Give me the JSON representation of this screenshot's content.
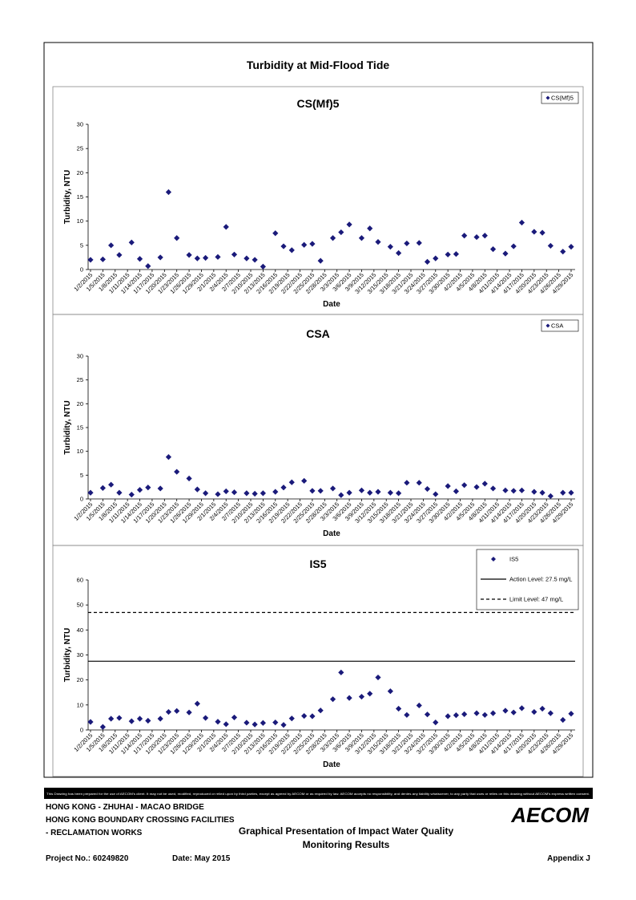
{
  "title": "Turbidity at Mid-Flood Tide",
  "chart_data": [
    {
      "type": "scatter",
      "title": "CS(Mf)5",
      "x_label": "Date",
      "y_label": "Turbidity, NTU",
      "legend": "upper right",
      "marker": "diamond",
      "x": [
        "1/2/2015",
        "1/5/2015",
        "1/7/2015",
        "1/9/2015",
        "1/12/2015",
        "1/14/2015",
        "1/16/2015",
        "1/19/2015",
        "1/21/2015",
        "1/23/2015",
        "1/26/2015",
        "1/28/2015",
        "1/30/2015",
        "2/2/2015",
        "2/4/2015",
        "2/6/2015",
        "2/9/2015",
        "2/11/2015",
        "2/13/2015",
        "2/16/2015",
        "2/18/2015",
        "2/20/2015",
        "2/23/2015",
        "2/25/2015",
        "2/27/2015",
        "3/2/2015",
        "3/4/2015",
        "3/6/2015",
        "3/9/2015",
        "3/11/2015",
        "3/13/2015",
        "3/16/2015",
        "3/18/2015",
        "3/20/2015",
        "3/23/2015",
        "3/25/2015",
        "3/27/2015",
        "3/30/2015",
        "4/1/2015",
        "4/3/2015",
        "4/6/2015",
        "4/8/2015",
        "4/10/2015",
        "4/13/2015",
        "4/15/2015",
        "4/17/2015",
        "4/20/2015",
        "4/22/2015",
        "4/24/2015",
        "4/27/2015",
        "4/29/2015"
      ],
      "series": [
        {
          "name": "CS(Mf)5",
          "color": "#1a1a7a",
          "values": [
            2.0,
            2.1,
            5.0,
            3.0,
            5.6,
            2.2,
            0.7,
            2.5,
            16,
            6.5,
            3.0,
            2.3,
            2.4,
            2.6,
            8.8,
            3.1,
            2.3,
            2.0,
            0.6,
            7.5,
            4.8,
            4.0,
            5.1,
            5.3,
            1.8,
            6.5,
            7.7,
            9.3,
            6.5,
            8.5,
            5.7,
            4.7,
            3.4,
            5.4,
            5.5,
            1.6,
            2.3,
            3.1,
            3.2,
            7.0,
            6.7,
            7.0,
            4.2,
            3.3,
            4.8,
            9.7,
            7.8,
            7.6,
            4.9,
            3.7,
            4.7
          ]
        }
      ],
      "xlim": [
        "1/2/2015",
        "4/29/2015"
      ],
      "ylim": [
        0,
        30
      ],
      "yticks": [
        0,
        5,
        10,
        15,
        20,
        25,
        30
      ],
      "xticks": [
        "1/2/2015",
        "1/5/2015",
        "1/8/2015",
        "1/11/2015",
        "1/14/2015",
        "1/17/2015",
        "1/20/2015",
        "1/23/2015",
        "1/26/2015",
        "1/29/2015",
        "2/1/2015",
        "2/4/2015",
        "2/7/2015",
        "2/10/2015",
        "2/13/2015",
        "2/16/2015",
        "2/19/2015",
        "2/22/2015",
        "2/25/2015",
        "2/28/2015",
        "3/3/2015",
        "3/6/2015",
        "3/9/2015",
        "3/12/2015",
        "3/15/2015",
        "3/18/2015",
        "3/21/2015",
        "3/24/2015",
        "3/27/2015",
        "3/30/2015",
        "4/2/2015",
        "4/5/2015",
        "4/8/2015",
        "4/11/2015",
        "4/14/2015",
        "4/17/2015",
        "4/20/2015",
        "4/23/2015",
        "4/26/2015",
        "4/29/2015"
      ]
    },
    {
      "type": "scatter",
      "title": "CSA",
      "x_label": "Date",
      "y_label": "Turbidity, NTU",
      "legend": "upper right",
      "marker": "diamond",
      "x": [
        "1/2/2015",
        "1/5/2015",
        "1/7/2015",
        "1/9/2015",
        "1/12/2015",
        "1/14/2015",
        "1/16/2015",
        "1/19/2015",
        "1/21/2015",
        "1/23/2015",
        "1/26/2015",
        "1/28/2015",
        "1/30/2015",
        "2/2/2015",
        "2/4/2015",
        "2/6/2015",
        "2/9/2015",
        "2/11/2015",
        "2/13/2015",
        "2/16/2015",
        "2/18/2015",
        "2/20/2015",
        "2/23/2015",
        "2/25/2015",
        "2/27/2015",
        "3/2/2015",
        "3/4/2015",
        "3/6/2015",
        "3/9/2015",
        "3/11/2015",
        "3/13/2015",
        "3/16/2015",
        "3/18/2015",
        "3/20/2015",
        "3/23/2015",
        "3/25/2015",
        "3/27/2015",
        "3/30/2015",
        "4/1/2015",
        "4/3/2015",
        "4/6/2015",
        "4/8/2015",
        "4/10/2015",
        "4/13/2015",
        "4/15/2015",
        "4/17/2015",
        "4/20/2015",
        "4/22/2015",
        "4/24/2015",
        "4/27/2015",
        "4/29/2015"
      ],
      "series": [
        {
          "name": "CSA",
          "color": "#1a1a7a",
          "values": [
            1.3,
            2.3,
            3.0,
            1.3,
            0.9,
            1.9,
            2.4,
            2.2,
            8.8,
            5.7,
            4.3,
            2.0,
            1.2,
            1.0,
            1.6,
            1.4,
            1.2,
            1.1,
            1.2,
            1.5,
            2.4,
            3.5,
            3.8,
            1.7,
            1.7,
            2.2,
            0.8,
            1.3,
            1.8,
            1.3,
            1.5,
            1.3,
            1.2,
            3.4,
            3.4,
            2.1,
            1.0,
            2.7,
            1.6,
            2.9,
            2.5,
            3.2,
            2.2,
            1.8,
            1.7,
            1.8,
            1.5,
            1.3,
            0.6,
            1.3,
            1.3
          ]
        }
      ],
      "xlim": [
        "1/2/2015",
        "4/29/2015"
      ],
      "ylim": [
        0,
        30
      ],
      "yticks": [
        0,
        5,
        10,
        15,
        20,
        25,
        30
      ],
      "xticks": [
        "1/2/2015",
        "1/5/2015",
        "1/8/2015",
        "1/11/2015",
        "1/14/2015",
        "1/17/2015",
        "1/20/2015",
        "1/23/2015",
        "1/26/2015",
        "1/29/2015",
        "2/1/2015",
        "2/4/2015",
        "2/7/2015",
        "2/10/2015",
        "2/13/2015",
        "2/16/2015",
        "2/19/2015",
        "2/22/2015",
        "2/25/2015",
        "2/28/2015",
        "3/3/2015",
        "3/6/2015",
        "3/9/2015",
        "3/12/2015",
        "3/15/2015",
        "3/18/2015",
        "3/21/2015",
        "3/24/2015",
        "3/27/2015",
        "3/30/2015",
        "4/2/2015",
        "4/5/2015",
        "4/8/2015",
        "4/11/2015",
        "4/14/2015",
        "4/17/2015",
        "4/20/2015",
        "4/23/2015",
        "4/26/2015",
        "4/29/2015"
      ]
    },
    {
      "type": "scatter",
      "title": "IS5",
      "x_label": "Date",
      "y_label": "Turbidity, NTU",
      "legend": "upper right",
      "marker": "diamond",
      "x": [
        "1/2/2015",
        "1/5/2015",
        "1/7/2015",
        "1/9/2015",
        "1/12/2015",
        "1/14/2015",
        "1/16/2015",
        "1/19/2015",
        "1/21/2015",
        "1/23/2015",
        "1/26/2015",
        "1/28/2015",
        "1/30/2015",
        "2/2/2015",
        "2/4/2015",
        "2/6/2015",
        "2/9/2015",
        "2/11/2015",
        "2/13/2015",
        "2/16/2015",
        "2/18/2015",
        "2/20/2015",
        "2/23/2015",
        "2/25/2015",
        "2/27/2015",
        "3/2/2015",
        "3/4/2015",
        "3/6/2015",
        "3/9/2015",
        "3/11/2015",
        "3/13/2015",
        "3/16/2015",
        "3/18/2015",
        "3/20/2015",
        "3/23/2015",
        "3/25/2015",
        "3/27/2015",
        "3/30/2015",
        "4/1/2015",
        "4/3/2015",
        "4/6/2015",
        "4/8/2015",
        "4/10/2015",
        "4/13/2015",
        "4/15/2015",
        "4/17/2015",
        "4/20/2015",
        "4/22/2015",
        "4/24/2015",
        "4/27/2015",
        "4/29/2015"
      ],
      "series": [
        {
          "name": "IS5",
          "color": "#1a1a7a",
          "values": [
            3.2,
            1.2,
            4.5,
            4.8,
            3.5,
            4.5,
            3.7,
            4.5,
            7.2,
            7.6,
            7.0,
            10.5,
            4.8,
            3.3,
            2.3,
            5.0,
            2.9,
            2.2,
            2.8,
            3.0,
            2.0,
            4.6,
            5.6,
            5.5,
            7.8,
            12.3,
            23.0,
            12.8,
            13.3,
            14.5,
            21.0,
            15.5,
            8.5,
            6.0,
            9.8,
            6.2,
            3.0,
            5.5,
            5.9,
            6.3,
            6.7,
            6.0,
            6.7,
            7.7,
            7.0,
            8.7,
            7.2,
            8.5,
            6.7,
            4.0,
            6.5
          ]
        }
      ],
      "lines": [
        {
          "name": "Action Level: 27.5 mg/L",
          "value": 27.5,
          "style": "solid"
        },
        {
          "name": "Limit Level: 47 mg/L",
          "value": 47,
          "style": "dashed"
        }
      ],
      "xlim": [
        "1/2/2015",
        "4/29/2015"
      ],
      "ylim": [
        0,
        60
      ],
      "yticks": [
        0,
        10,
        20,
        30,
        40,
        50,
        60
      ],
      "xticks": [
        "1/2/2015",
        "1/5/2015",
        "1/8/2015",
        "1/11/2015",
        "1/14/2015",
        "1/17/2015",
        "1/20/2015",
        "1/23/2015",
        "1/26/2015",
        "1/29/2015",
        "2/1/2015",
        "2/4/2015",
        "2/7/2015",
        "2/10/2015",
        "2/13/2015",
        "2/16/2015",
        "2/19/2015",
        "2/22/2015",
        "2/25/2015",
        "2/28/2015",
        "3/3/2015",
        "3/6/2015",
        "3/9/2015",
        "3/12/2015",
        "3/15/2015",
        "3/18/2015",
        "3/21/2015",
        "3/24/2015",
        "3/27/2015",
        "3/30/2015",
        "4/2/2015",
        "4/5/2015",
        "4/8/2015",
        "4/11/2015",
        "4/14/2015",
        "4/17/2015",
        "4/20/2015",
        "4/23/2015",
        "4/26/2015",
        "4/29/2015"
      ]
    }
  ],
  "disclaimer": "This Drawing has been prepared for the use of AECOM's client. It may not be used, modified, reproduced or relied upon by third parties, except as agreed by AECOM or as required by law. AECOM accepts no responsibility, and denies any liability whatsoever, to any party that uses or relies on this drawing without AECOM's express written consent.",
  "footer": {
    "project_lines": [
      "HONG KONG - ZHUHAI - MACAO BRIDGE",
      "HONG KONG BOUNDARY CROSSING FACILITIES",
      "- RECLAMATION WORKS"
    ],
    "drawing_title": [
      "Graphical Presentation of Impact Water Quality",
      "Monitoring Results"
    ],
    "logo": "AECOM",
    "project_no": "Project No.: 60249820",
    "date": "Date: May 2015",
    "appendix": "Appendix J"
  }
}
